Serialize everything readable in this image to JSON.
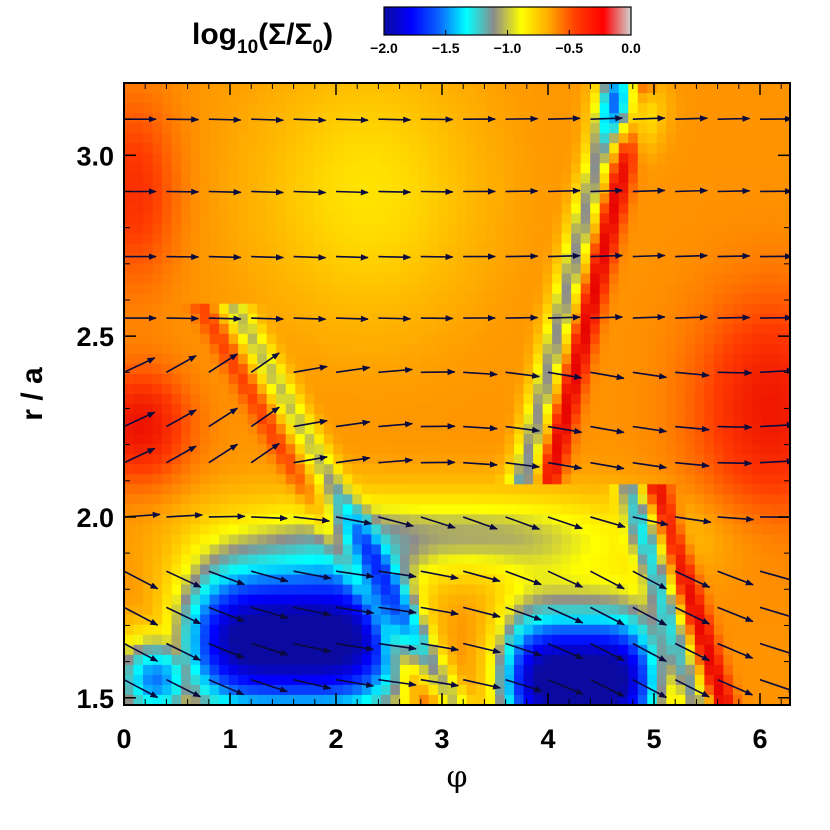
{
  "chart_data": {
    "type": "heatmap",
    "colorbar": {
      "title_main": "log",
      "title_sub": "10",
      "title_rest": "(Σ/Σ",
      "title_sub2": "0",
      "title_end": ")",
      "range": [
        -2.0,
        0.0
      ],
      "ticks": [
        "−2.0",
        "−1.5",
        "−1.0",
        "−0.5",
        "0.0"
      ],
      "colors": [
        "#0a0aa0",
        "#0000ff",
        "#0a64ff",
        "#00ffff",
        "#8c8c8c",
        "#ffff00",
        "#ffaa00",
        "#ff3c00",
        "#ff0000",
        "#d2d2d2"
      ]
    },
    "xlabel": "φ",
    "ylabel": "r / a",
    "xlim": [
      0,
      6.283
    ],
    "ylim": [
      1.48,
      3.2
    ],
    "xticks": [
      0,
      1,
      2,
      3,
      4,
      5,
      6
    ],
    "xtick_labels": [
      "0",
      "1",
      "2",
      "3",
      "4",
      "5",
      "6"
    ],
    "yticks": [
      1.5,
      2.0,
      2.5,
      3.0
    ],
    "ytick_labels": [
      "1.5",
      "2.0",
      "2.5",
      "3.0"
    ],
    "grid": false,
    "features": {
      "low_density_blue_regions": [
        {
          "phi_range": [
            0.3,
            2.8
          ],
          "r_range": [
            1.5,
            1.95
          ]
        },
        {
          "phi_range": [
            3.8,
            5.1
          ],
          "r_range": [
            1.5,
            1.75
          ]
        }
      ],
      "high_density_red_regions": [
        {
          "phi_range": [
            0.0,
            0.6
          ],
          "r_range": [
            2.1,
            2.4
          ]
        },
        {
          "phi_range": [
            0.0,
            0.3
          ],
          "r_range": [
            2.8,
            3.1
          ]
        },
        {
          "phi_range": [
            5.5,
            6.28
          ],
          "r_range": [
            2.1,
            2.6
          ]
        }
      ],
      "spiral_shocks_phi_at_r": [
        {
          "r": 3.15,
          "phi": 4.6
        },
        {
          "r": 2.5,
          "phi": 3.9
        },
        {
          "r": 2.0,
          "phi": 4.9
        },
        {
          "r": 1.5,
          "phi": 5.5
        }
      ]
    },
    "velocity_field": {
      "r_rows": [
        1.55,
        1.65,
        1.75,
        1.85,
        2.0,
        2.15,
        2.25,
        2.4,
        2.55,
        2.72,
        2.9,
        3.1
      ],
      "phi_cols": [
        0.0,
        0.4,
        0.8,
        1.2,
        1.6,
        2.0,
        2.4,
        2.8,
        3.2,
        3.6,
        4.0,
        4.4,
        4.8,
        5.2,
        5.6,
        6.0
      ],
      "unit_note": "arrows show velocity direction"
    }
  }
}
